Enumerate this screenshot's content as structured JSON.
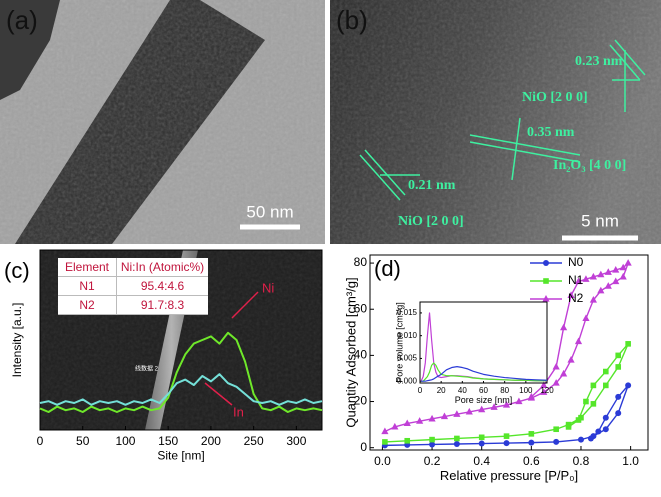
{
  "images": [
    {
      "label": "(a)",
      "scale_bar": "50 nm"
    },
    {
      "label": "(b)",
      "scale_bar": "5 nm",
      "annotations": [
        "0.23 nm",
        "NiO [2 0 0]",
        "0.35 nm",
        "In₂O₃ [4 0 0]",
        "0.21 nm",
        "NiO [2 0 0]"
      ]
    }
  ],
  "table": {
    "header": [
      "Element",
      "Ni:In (Atomic%)"
    ],
    "rows": [
      [
        "N1",
        "95.4:4.6"
      ],
      [
        "N2",
        "91.7:8.3"
      ]
    ]
  },
  "chart_data": [
    {
      "type": "line",
      "panel_label": "(c)",
      "x_label": "Site [nm]",
      "y_label": "Intensity [a.u.]",
      "annotation": "线数据 2",
      "x": [
        0,
        10,
        20,
        30,
        40,
        50,
        60,
        70,
        80,
        90,
        100,
        110,
        120,
        130,
        140,
        150,
        160,
        170,
        180,
        190,
        200,
        210,
        220,
        230,
        240,
        250,
        260,
        270,
        280,
        290,
        300,
        310,
        320,
        330
      ],
      "series": [
        {
          "name": "Ni",
          "color": "#6fe82a",
          "values": [
            12,
            10,
            13,
            11,
            12,
            10,
            13,
            11,
            12,
            10,
            12,
            11,
            13,
            11,
            12,
            18,
            32,
            42,
            48,
            50,
            52,
            48,
            54,
            50,
            38,
            20,
            12,
            11,
            13,
            10,
            12,
            11,
            12,
            11
          ]
        },
        {
          "name": "In",
          "color": "#74e0d8",
          "values": [
            15,
            16,
            14,
            16,
            15,
            17,
            14,
            16,
            15,
            16,
            14,
            16,
            15,
            17,
            15,
            20,
            26,
            28,
            25,
            30,
            27,
            31,
            26,
            24,
            20,
            16,
            15,
            16,
            14,
            16,
            15,
            17,
            15,
            16
          ]
        }
      ],
      "xlim": [
        0,
        330
      ],
      "xticks": [
        0,
        50,
        100,
        150,
        200,
        250,
        300
      ],
      "ylim": [
        0,
        100
      ]
    },
    {
      "type": "line",
      "panel_label": "(d)",
      "x_label": "Relative pressure [P/P₀]",
      "y_label": "Quantity Adsorbed [cm³/g]",
      "series": [
        {
          "name": "N0",
          "color": "#2b3bd6",
          "marker": "circle",
          "x": [
            0.01,
            0.1,
            0.2,
            0.3,
            0.4,
            0.5,
            0.6,
            0.7,
            0.8,
            0.85,
            0.9,
            0.95,
            0.99,
            0.95,
            0.9,
            0.87,
            0.84
          ],
          "values": [
            1,
            1.2,
            1.4,
            1.6,
            1.8,
            2,
            2.2,
            2.5,
            3.5,
            5,
            8,
            15,
            27,
            22,
            13,
            7,
            4
          ]
        },
        {
          "name": "N1",
          "color": "#55e62a",
          "marker": "square",
          "x": [
            0.01,
            0.1,
            0.2,
            0.3,
            0.4,
            0.5,
            0.6,
            0.7,
            0.75,
            0.8,
            0.85,
            0.9,
            0.95,
            0.99,
            0.95,
            0.9,
            0.85,
            0.82,
            0.79,
            0.75
          ],
          "values": [
            2.5,
            3,
            3.5,
            4,
            4.5,
            5,
            6,
            8,
            10,
            13,
            19,
            27,
            35,
            45,
            40,
            33,
            27,
            20,
            12,
            9
          ]
        },
        {
          "name": "N2",
          "color": "#c03fd6",
          "marker": "triangle",
          "x": [
            0.01,
            0.05,
            0.1,
            0.15,
            0.2,
            0.25,
            0.3,
            0.35,
            0.4,
            0.45,
            0.5,
            0.55,
            0.6,
            0.65,
            0.7,
            0.73,
            0.76,
            0.79,
            0.82,
            0.85,
            0.88,
            0.91,
            0.94,
            0.97,
            0.99,
            0.97,
            0.94,
            0.91,
            0.88,
            0.85,
            0.82,
            0.79,
            0.76,
            0.73,
            0.7,
            0.65,
            0.6
          ],
          "values": [
            7,
            9,
            10.5,
            11.5,
            12.5,
            13.5,
            14.5,
            15.5,
            16.5,
            17.5,
            18.5,
            20,
            21.5,
            24,
            28,
            32,
            38,
            46,
            56,
            64,
            68,
            70,
            72,
            74,
            80,
            78,
            77,
            76,
            75,
            74,
            73,
            72,
            66,
            52,
            35,
            27,
            22
          ]
        }
      ],
      "xlim": [
        -0.05,
        1.07
      ],
      "xticks": [
        {
          "value": 0,
          "label": "0.0"
        },
        0.2,
        0.4,
        0.6,
        0.8,
        {
          "value": 1,
          "label": "1.0"
        }
      ],
      "ylim": [
        -1,
        83.5
      ],
      "yticks": [
        0,
        20,
        40,
        60,
        80
      ]
    },
    {
      "type": "line",
      "x_label": "Pore size [nm]",
      "y_label": "Pore volume [cm³/g]",
      "x": [
        1,
        3,
        5,
        7,
        9,
        11,
        13,
        15,
        17,
        20,
        25,
        30,
        35,
        40,
        45,
        50,
        60,
        70,
        80,
        90,
        100,
        110,
        120
      ],
      "series": [
        {
          "color": "#c03fd6",
          "values": [
            0,
            0.001,
            0.004,
            0.01,
            0.015,
            0.009,
            0.004,
            0.002,
            0.001,
            0.0008,
            0.001,
            0.0012,
            0.0012,
            0.0011,
            0.001,
            0.0008,
            0.0005,
            0.0004,
            0.0003,
            0.0002,
            0.0002,
            0.0001,
            0.0001
          ]
        },
        {
          "color": "#55e62a",
          "values": [
            0,
            0,
            0.0005,
            0.001,
            0.002,
            0.0035,
            0.004,
            0.0035,
            0.0025,
            0.0015,
            0.0012,
            0.0012,
            0.0011,
            0.001,
            0.0009,
            0.0007,
            0.0005,
            0.0004,
            0.0003,
            0.0002,
            0.0002,
            0.0001,
            0.0001
          ]
        },
        {
          "color": "#2b3bd6",
          "values": [
            0,
            0,
            0,
            0.0001,
            0.0002,
            0.0003,
            0.0005,
            0.0008,
            0.0011,
            0.0015,
            0.0025,
            0.003,
            0.0032,
            0.003,
            0.0027,
            0.0022,
            0.0015,
            0.0011,
            0.0008,
            0.0006,
            0.0004,
            0.0003,
            0.0002
          ]
        }
      ],
      "xlim": [
        0,
        120
      ],
      "xticks": [
        0,
        20,
        40,
        60,
        80,
        100,
        120
      ],
      "ylim": [
        -0.0004,
        0.0174
      ],
      "yticks": [
        {
          "value": 0,
          "label": "0.000"
        },
        0.005,
        {
          "value": 0.01,
          "label": "0.010"
        },
        0.015
      ]
    }
  ]
}
